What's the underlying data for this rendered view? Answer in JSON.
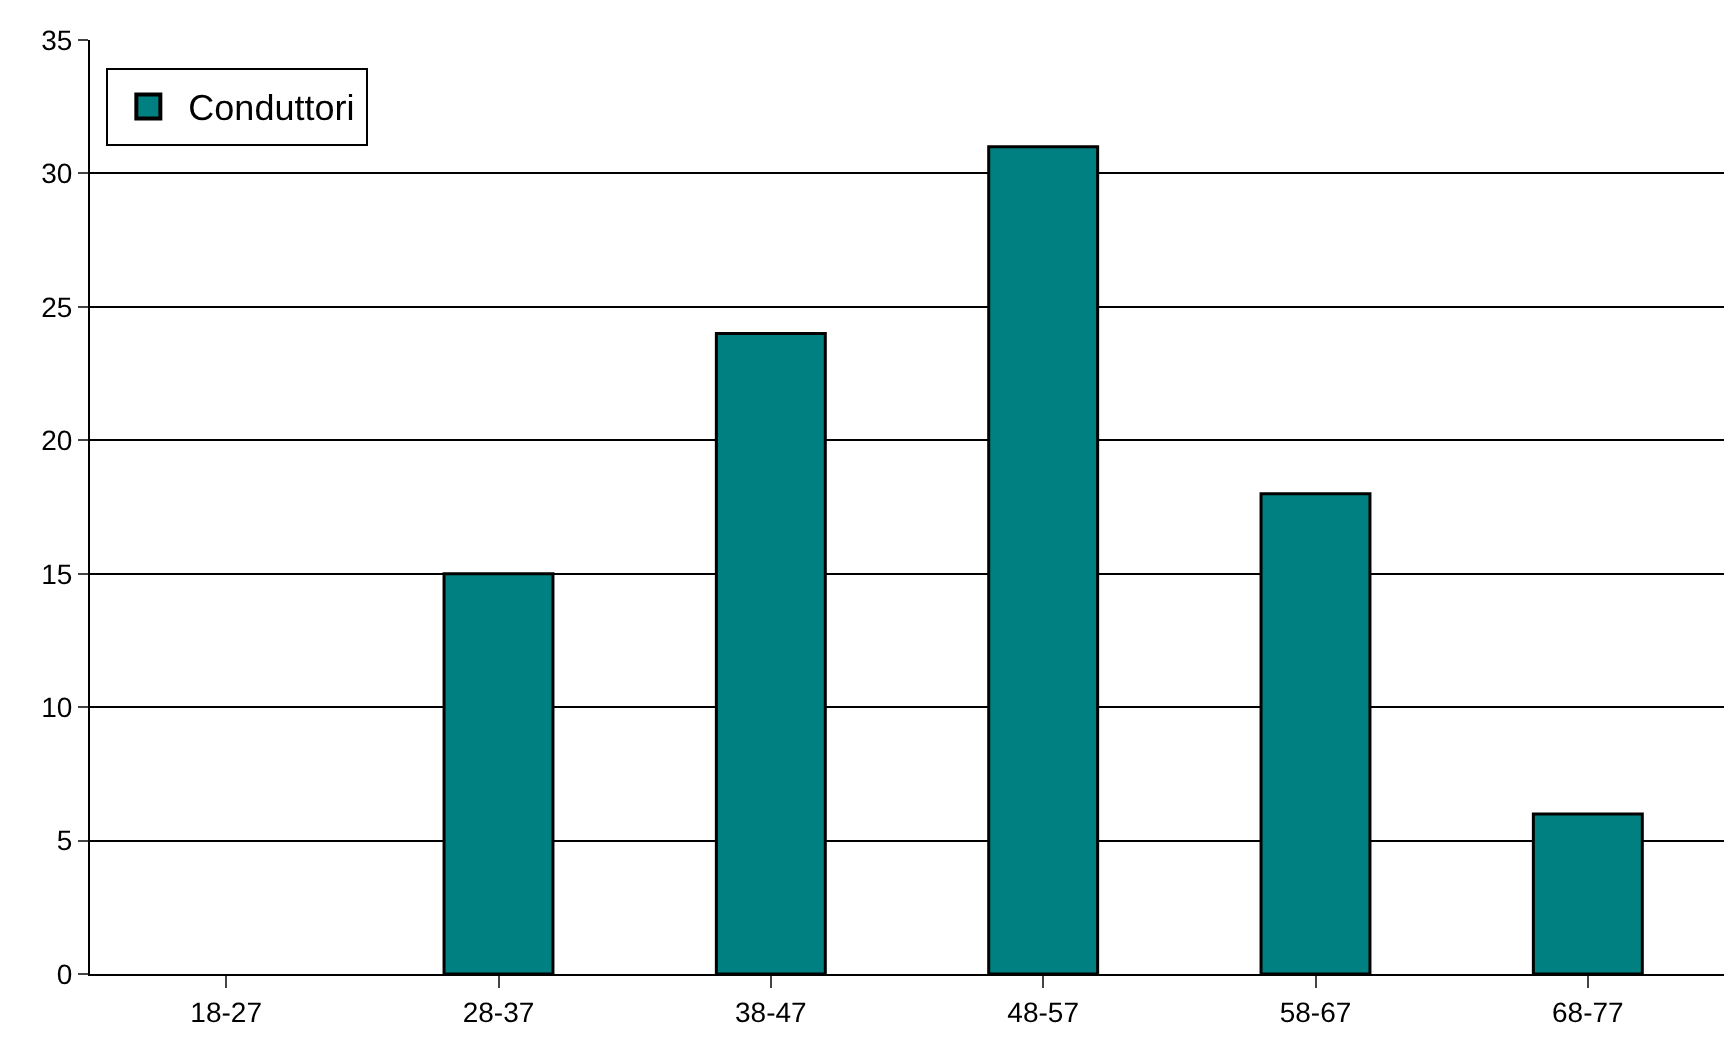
{
  "chart_data": {
    "type": "bar",
    "categories": [
      "18-27",
      "28-37",
      "38-47",
      "48-57",
      "58-67",
      "68-77"
    ],
    "series": [
      {
        "name": "Conduttori",
        "color": "#008080",
        "values": [
          0,
          15,
          24,
          31,
          18,
          6
        ]
      }
    ],
    "ylim": [
      0,
      35
    ],
    "yticks": [
      0,
      5,
      10,
      15,
      20,
      25,
      30,
      35
    ],
    "grid": "y",
    "legend": "top left"
  }
}
